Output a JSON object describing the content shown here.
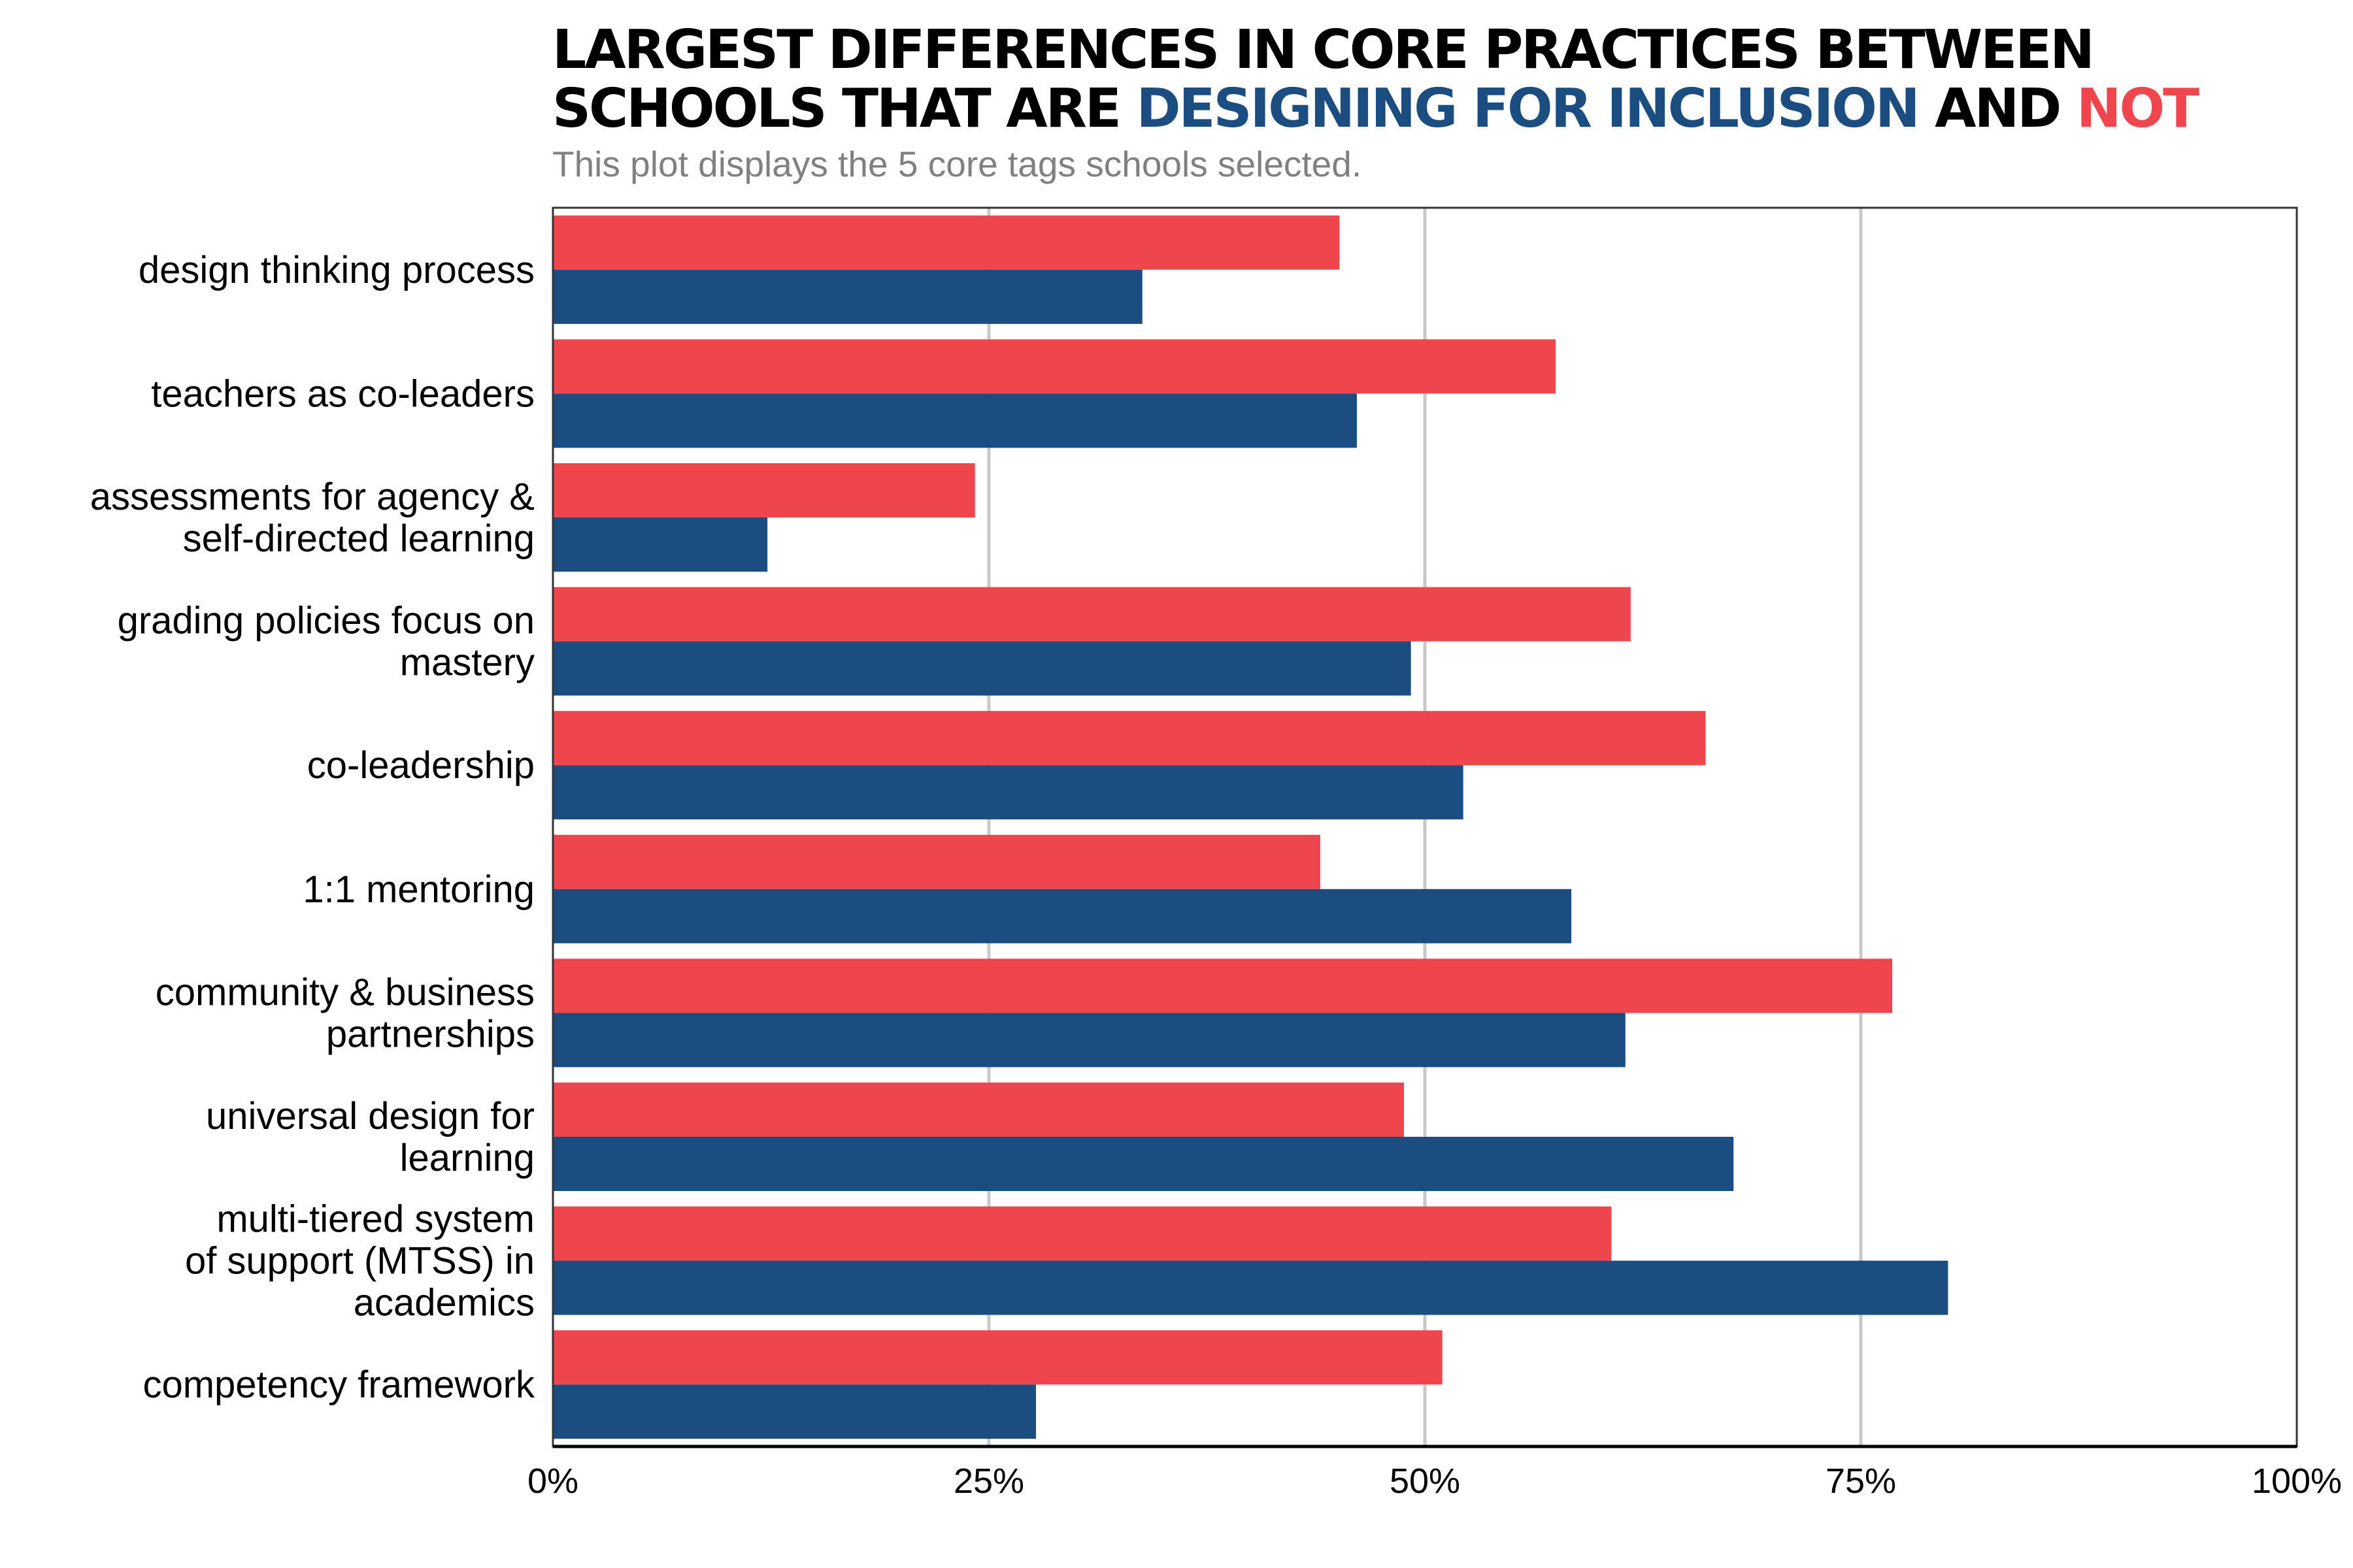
{
  "chart_data": {
    "type": "bar",
    "orientation": "horizontal",
    "title_line1": "LARGEST DIFFERENCES IN CORE PRACTICES BETWEEN",
    "title_line2_prefix": "SCHOOLS THAT ARE ",
    "title_highlight_inclusion": "DESIGNING FOR INCLUSION",
    "title_and": " AND ",
    "title_highlight_not": "NOT",
    "subtitle": "This plot displays the 5 core tags schools selected.",
    "categories": [
      [
        "design thinking process"
      ],
      [
        "teachers as co-leaders"
      ],
      [
        "assessments for agency &",
        "self-directed learning"
      ],
      [
        "grading policies focus on",
        "mastery"
      ],
      [
        "co-leadership"
      ],
      [
        "1:1 mentoring"
      ],
      [
        "community & business",
        "partnerships"
      ],
      [
        "universal design for",
        "learning"
      ],
      [
        "multi-tiered system",
        "of support (MTSS) in",
        "academics"
      ],
      [
        "competency framework"
      ]
    ],
    "series": [
      {
        "key": "not",
        "color": "#ef464e",
        "values": [
          45.1,
          57.5,
          24.2,
          61.8,
          66.1,
          44.0,
          76.8,
          48.8,
          60.7,
          51.0
        ]
      },
      {
        "key": "inclusion",
        "color": "#1c4d80",
        "values": [
          33.8,
          46.1,
          12.3,
          49.2,
          52.2,
          58.4,
          61.5,
          67.7,
          80.0,
          27.7
        ]
      }
    ],
    "xlim": [
      0,
      100
    ],
    "xticks": [
      0,
      25,
      50,
      75,
      100
    ],
    "xtick_labels": [
      "0%",
      "25%",
      "50%",
      "75%",
      "100%"
    ],
    "grid": true,
    "legend": "none (series named by title colours)"
  }
}
